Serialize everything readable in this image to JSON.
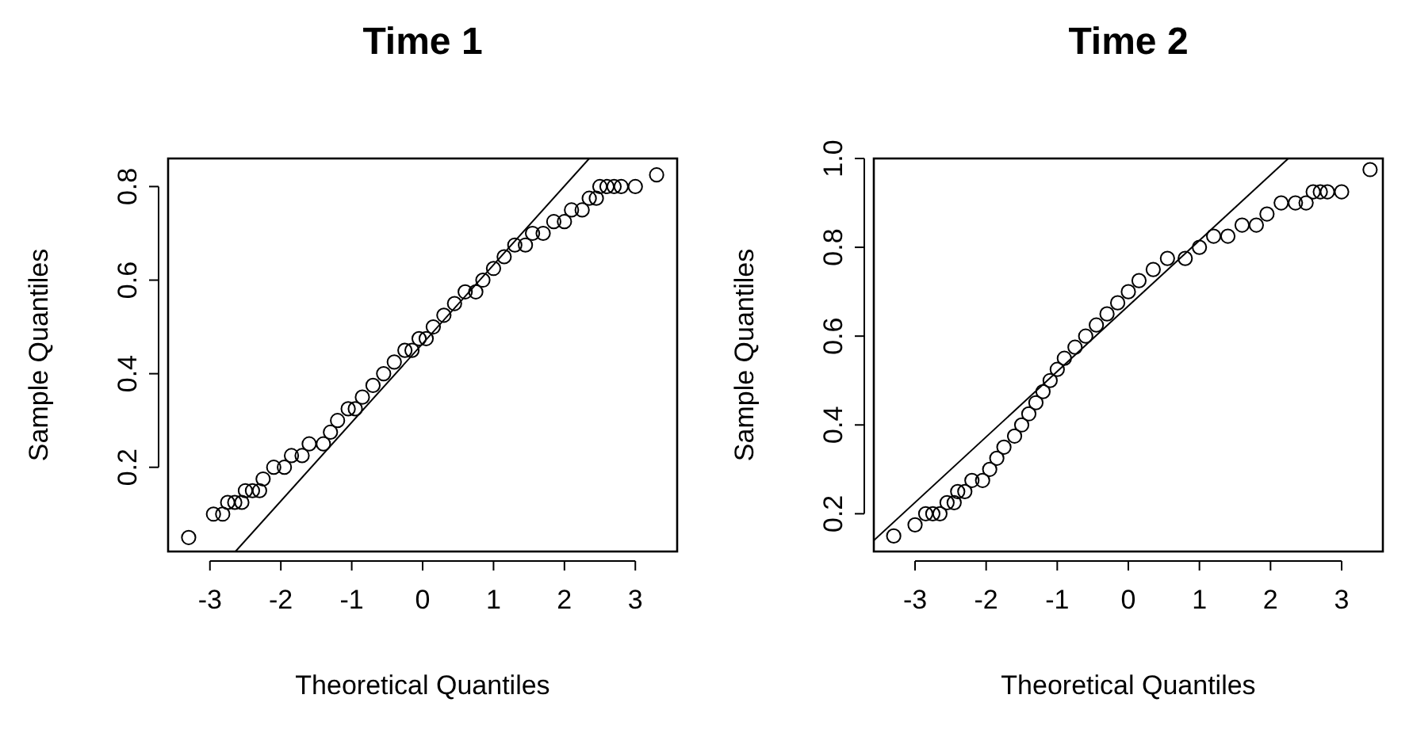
{
  "chart_data": [
    {
      "type": "scatter",
      "title": "Time 1",
      "xlabel": "Theoretical Quantiles",
      "ylabel": "Sample Quantiles",
      "xlim": [
        -3.59,
        3.59
      ],
      "ylim": [
        0.02,
        0.86
      ],
      "xticks": [
        -3,
        -2,
        -1,
        0,
        1,
        2,
        3
      ],
      "yticks": [
        0.2,
        0.4,
        0.6,
        0.8
      ],
      "series": [
        {
          "marker": "circle",
          "color": "#000000",
          "x": [
            -3.3,
            -2.95,
            -2.82,
            -2.75,
            -2.65,
            -2.55,
            -2.5,
            -2.4,
            -2.3,
            -2.25,
            -2.1,
            -1.95,
            -1.85,
            -1.7,
            -1.6,
            -1.4,
            -1.3,
            -1.2,
            -1.05,
            -0.95,
            -0.85,
            -0.7,
            -0.55,
            -0.4,
            -0.25,
            -0.15,
            -0.05,
            0.05,
            0.15,
            0.3,
            0.45,
            0.6,
            0.75,
            0.85,
            1.0,
            1.15,
            1.3,
            1.45,
            1.55,
            1.7,
            1.85,
            2.0,
            2.1,
            2.25,
            2.35,
            2.45,
            2.5,
            2.6,
            2.7,
            2.8,
            3.0,
            3.3
          ],
          "values": [
            0.05,
            0.1,
            0.1,
            0.125,
            0.125,
            0.125,
            0.15,
            0.15,
            0.15,
            0.175,
            0.2,
            0.2,
            0.225,
            0.225,
            0.25,
            0.25,
            0.275,
            0.3,
            0.325,
            0.325,
            0.35,
            0.375,
            0.4,
            0.425,
            0.45,
            0.45,
            0.475,
            0.475,
            0.5,
            0.525,
            0.55,
            0.575,
            0.575,
            0.6,
            0.625,
            0.65,
            0.675,
            0.675,
            0.7,
            0.7,
            0.725,
            0.725,
            0.75,
            0.75,
            0.775,
            0.775,
            0.8,
            0.8,
            0.8,
            0.8,
            0.8,
            0.825
          ]
        },
        {
          "type": "line",
          "color": "#000000",
          "x": [
            -2.64,
            2.35
          ],
          "values": [
            0.02,
            0.86
          ]
        }
      ]
    },
    {
      "type": "scatter",
      "title": "Time 2",
      "xlabel": "Theoretical Quantiles",
      "ylabel": "Sample Quantiles",
      "xlim": [
        -3.58,
        3.58
      ],
      "ylim": [
        0.115,
        1.0
      ],
      "xticks": [
        -3,
        -2,
        -1,
        0,
        1,
        2,
        3
      ],
      "yticks": [
        0.2,
        0.4,
        0.6,
        0.8,
        {
          "value": 1.0,
          "label": "1.0"
        }
      ],
      "series": [
        {
          "marker": "circle",
          "color": "#000000",
          "x": [
            -3.3,
            -3.0,
            -2.85,
            -2.75,
            -2.65,
            -2.55,
            -2.45,
            -2.4,
            -2.3,
            -2.2,
            -2.05,
            -1.95,
            -1.85,
            -1.75,
            -1.6,
            -1.5,
            -1.4,
            -1.3,
            -1.2,
            -1.1,
            -1.0,
            -0.9,
            -0.75,
            -0.6,
            -0.45,
            -0.3,
            -0.15,
            0.0,
            0.15,
            0.35,
            0.55,
            0.8,
            1.0,
            1.2,
            1.4,
            1.6,
            1.8,
            1.95,
            2.15,
            2.35,
            2.5,
            2.6,
            2.7,
            2.8,
            3.0,
            3.4
          ],
          "values": [
            0.15,
            0.175,
            0.2,
            0.2,
            0.2,
            0.225,
            0.225,
            0.25,
            0.25,
            0.275,
            0.275,
            0.3,
            0.325,
            0.35,
            0.375,
            0.4,
            0.425,
            0.45,
            0.475,
            0.5,
            0.525,
            0.55,
            0.575,
            0.6,
            0.625,
            0.65,
            0.675,
            0.7,
            0.725,
            0.75,
            0.775,
            0.775,
            0.8,
            0.825,
            0.825,
            0.85,
            0.85,
            0.875,
            0.9,
            0.9,
            0.9,
            0.925,
            0.925,
            0.925,
            0.925,
            0.975
          ]
        },
        {
          "type": "line",
          "color": "#000000",
          "x": [
            -3.58,
            2.25
          ],
          "values": [
            0.14,
            1.0
          ]
        }
      ]
    }
  ]
}
